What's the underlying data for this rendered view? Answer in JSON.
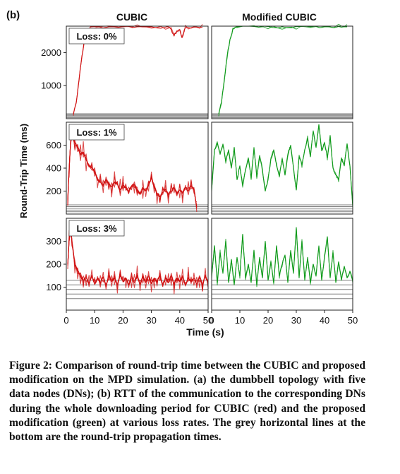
{
  "figure": {
    "panel_label": "(b)",
    "column_titles": [
      "CUBIC",
      "Modified CUBIC"
    ],
    "ylabel": "Round-Trip Time (ms)",
    "xlabel": "Time (s)"
  },
  "caption": "Figure 2: Comparison of round-trip time between the CUBIC and proposed modification on the MPD simulation. (a) the dumbbell topology with five data nodes (DNs); (b) RTT of the communication to the corresponding DNs during the whole downloading period for CUBIC (red) and the proposed modification (green) at various loss rates. The grey horizontal lines at the bottom are the round-trip propagation times.",
  "colors": {
    "cubic": "#d01010",
    "modified": "#0f9a1a",
    "propagation": "#7f7f7f"
  },
  "chart_data": [
    {
      "type": "line",
      "row": 0,
      "col": 0,
      "label": "Loss: 0%",
      "xlim": [
        0,
        50
      ],
      "ylim": [
        0,
        2800
      ],
      "yticks": [
        2000,
        1000
      ],
      "xticks": [],
      "show_yticks": true,
      "propagation_times": [
        30,
        60,
        90,
        120,
        150
      ],
      "series": [
        {
          "color_key": "cubic",
          "strands": 2,
          "points": [
            [
              2.5,
              150
            ],
            [
              3.5,
              500
            ],
            [
              4.5,
              1200
            ],
            [
              5.5,
              1900
            ],
            [
              6.5,
              2400
            ],
            [
              7.5,
              2700
            ],
            [
              9,
              2780
            ],
            [
              15,
              2780
            ],
            [
              20,
              2790
            ],
            [
              25,
              2780
            ],
            [
              30,
              2780
            ],
            [
              35,
              2770
            ],
            [
              37,
              2700
            ],
            [
              38,
              2500
            ],
            [
              39,
              2650
            ],
            [
              40,
              2700
            ],
            [
              40.8,
              2450
            ],
            [
              42,
              2750
            ],
            [
              45,
              2770
            ],
            [
              48,
              2770
            ]
          ]
        }
      ]
    },
    {
      "type": "line",
      "row": 0,
      "col": 1,
      "label": "",
      "xlim": [
        0,
        50
      ],
      "ylim": [
        0,
        2800
      ],
      "yticks": [],
      "xticks": [],
      "show_yticks": false,
      "propagation_times": [
        30,
        60,
        90,
        120,
        150
      ],
      "series": [
        {
          "color_key": "modified",
          "strands": 2,
          "points": [
            [
              2.5,
              150
            ],
            [
              3.5,
              500
            ],
            [
              4.5,
              1200
            ],
            [
              5.5,
              1900
            ],
            [
              6.5,
              2400
            ],
            [
              7.5,
              2700
            ],
            [
              9,
              2780
            ],
            [
              15,
              2790
            ],
            [
              20,
              2790
            ],
            [
              25,
              2780
            ],
            [
              30,
              2790
            ],
            [
              35,
              2780
            ],
            [
              40,
              2780
            ],
            [
              45,
              2790
            ],
            [
              48,
              2780
            ]
          ]
        }
      ]
    },
    {
      "type": "line",
      "row": 1,
      "col": 0,
      "label": "Loss: 1%",
      "xlim": [
        0,
        50
      ],
      "ylim": [
        0,
        800
      ],
      "yticks": [
        600,
        400,
        200
      ],
      "xticks": [],
      "show_yticks": true,
      "propagation_times": [
        20,
        35,
        50,
        65,
        80
      ],
      "series": [
        {
          "color_key": "cubic",
          "strands": 5,
          "points": [
            [
              0.5,
              120
            ],
            [
              1,
              400
            ],
            [
              1.5,
              620
            ],
            [
              2,
              690
            ],
            [
              3,
              620
            ],
            [
              4,
              580
            ],
            [
              5,
              520
            ],
            [
              6,
              540
            ],
            [
              7,
              470
            ],
            [
              8,
              420
            ],
            [
              9,
              400
            ],
            [
              10,
              370
            ],
            [
              11,
              300
            ],
            [
              12,
              280
            ],
            [
              13,
              250
            ],
            [
              14,
              300
            ],
            [
              15,
              260
            ],
            [
              16,
              240
            ],
            [
              17,
              280
            ],
            [
              18,
              260
            ],
            [
              19,
              210
            ],
            [
              20,
              250
            ],
            [
              21,
              230
            ],
            [
              22,
              200
            ],
            [
              23,
              240
            ],
            [
              24,
              260
            ],
            [
              25,
              210
            ],
            [
              26,
              170
            ],
            [
              27,
              230
            ],
            [
              28,
              200
            ],
            [
              29,
              250
            ],
            [
              30,
              320
            ],
            [
              31,
              240
            ],
            [
              32,
              180
            ],
            [
              33,
              150
            ],
            [
              34,
              190
            ],
            [
              35,
              220
            ],
            [
              36,
              170
            ],
            [
              37,
              200
            ],
            [
              38,
              230
            ],
            [
              39,
              180
            ],
            [
              40,
              210
            ],
            [
              41,
              190
            ],
            [
              42,
              230
            ],
            [
              43,
              200
            ],
            [
              44,
              240
            ],
            [
              45,
              220
            ],
            [
              46,
              60
            ]
          ]
        }
      ]
    },
    {
      "type": "line",
      "row": 1,
      "col": 1,
      "label": "",
      "xlim": [
        0,
        50
      ],
      "ylim": [
        0,
        800
      ],
      "yticks": [],
      "xticks": [],
      "show_yticks": false,
      "propagation_times": [
        20,
        35,
        50,
        65,
        80
      ],
      "series": [
        {
          "color_key": "modified",
          "strands": 2,
          "points": [
            [
              0,
              200
            ],
            [
              1,
              560
            ],
            [
              2,
              620
            ],
            [
              3,
              520
            ],
            [
              4,
              610
            ],
            [
              5,
              460
            ],
            [
              6,
              560
            ],
            [
              7,
              400
            ],
            [
              8,
              580
            ],
            [
              9,
              300
            ],
            [
              10,
              420
            ],
            [
              11,
              250
            ],
            [
              12,
              380
            ],
            [
              13,
              490
            ],
            [
              14,
              310
            ],
            [
              15,
              580
            ],
            [
              16,
              320
            ],
            [
              17,
              510
            ],
            [
              18,
              390
            ],
            [
              19,
              200
            ],
            [
              20,
              300
            ],
            [
              21,
              480
            ],
            [
              22,
              560
            ],
            [
              23,
              420
            ],
            [
              24,
              330
            ],
            [
              25,
              480
            ],
            [
              26,
              340
            ],
            [
              27,
              520
            ],
            [
              28,
              600
            ],
            [
              29,
              400
            ],
            [
              30,
              210
            ],
            [
              31,
              500
            ],
            [
              32,
              430
            ],
            [
              33,
              560
            ],
            [
              34,
              660
            ],
            [
              35,
              500
            ],
            [
              36,
              720
            ],
            [
              37,
              580
            ],
            [
              38,
              780
            ],
            [
              39,
              550
            ],
            [
              40,
              620
            ],
            [
              41,
              490
            ],
            [
              42,
              680
            ],
            [
              43,
              400
            ],
            [
              44,
              340
            ],
            [
              45,
              300
            ],
            [
              46,
              490
            ],
            [
              47,
              420
            ],
            [
              48,
              610
            ],
            [
              49,
              420
            ],
            [
              50,
              60
            ]
          ]
        }
      ]
    },
    {
      "type": "line",
      "row": 2,
      "col": 0,
      "label": "Loss: 3%",
      "xlim": [
        0,
        50
      ],
      "ylim": [
        0,
        400
      ],
      "yticks": [
        300,
        200,
        100
      ],
      "xticks": [
        0,
        10,
        20,
        30,
        40,
        50
      ],
      "show_yticks": true,
      "propagation_times": [
        50,
        70,
        90,
        110,
        130
      ],
      "series": [
        {
          "color_key": "cubic",
          "strands": 5,
          "points": [
            [
              0.5,
              200
            ],
            [
              1,
              300
            ],
            [
              1.5,
              360
            ],
            [
              2,
              300
            ],
            [
              3,
              200
            ],
            [
              4,
              170
            ],
            [
              5,
              150
            ],
            [
              6,
              130
            ],
            [
              7,
              140
            ],
            [
              8,
              120
            ],
            [
              9,
              150
            ],
            [
              10,
              115
            ],
            [
              11,
              140
            ],
            [
              12,
              120
            ],
            [
              13,
              145
            ],
            [
              14,
              110
            ],
            [
              15,
              150
            ],
            [
              16,
              125
            ],
            [
              17,
              140
            ],
            [
              18,
              110
            ],
            [
              19,
              150
            ],
            [
              20,
              125
            ],
            [
              21,
              140
            ],
            [
              22,
              110
            ],
            [
              23,
              145
            ],
            [
              24,
              120
            ],
            [
              25,
              150
            ],
            [
              26,
              115
            ],
            [
              27,
              145
            ],
            [
              28,
              120
            ],
            [
              29,
              150
            ],
            [
              30,
              115
            ],
            [
              31,
              140
            ],
            [
              32,
              125
            ],
            [
              33,
              150
            ],
            [
              34,
              110
            ],
            [
              35,
              140
            ],
            [
              36,
              120
            ],
            [
              37,
              150
            ],
            [
              38,
              115
            ],
            [
              39,
              140
            ],
            [
              40,
              125
            ],
            [
              41,
              145
            ],
            [
              42,
              110
            ],
            [
              43,
              140
            ],
            [
              44,
              125
            ],
            [
              45,
              140
            ],
            [
              46,
              115
            ],
            [
              47,
              145
            ],
            [
              48,
              110
            ],
            [
              49,
              150
            ],
            [
              50,
              120
            ]
          ]
        }
      ]
    },
    {
      "type": "line",
      "row": 2,
      "col": 1,
      "label": "",
      "xlim": [
        0,
        50
      ],
      "ylim": [
        0,
        400
      ],
      "yticks": [],
      "xticks": [
        0,
        10,
        20,
        30,
        40,
        50
      ],
      "show_yticks": false,
      "propagation_times": [
        50,
        70,
        90,
        110,
        130
      ],
      "series": [
        {
          "color_key": "modified",
          "strands": 2,
          "points": [
            [
              0,
              150
            ],
            [
              1,
              280
            ],
            [
              2,
              120
            ],
            [
              3,
              250
            ],
            [
              4,
              160
            ],
            [
              5,
              300
            ],
            [
              6,
              120
            ],
            [
              7,
              220
            ],
            [
              8,
              110
            ],
            [
              9,
              230
            ],
            [
              10,
              150
            ],
            [
              11,
              330
            ],
            [
              12,
              140
            ],
            [
              13,
              200
            ],
            [
              14,
              120
            ],
            [
              15,
              260
            ],
            [
              16,
              110
            ],
            [
              17,
              230
            ],
            [
              18,
              140
            ],
            [
              19,
              300
            ],
            [
              20,
              130
            ],
            [
              21,
              210
            ],
            [
              22,
              120
            ],
            [
              23,
              280
            ],
            [
              24,
              150
            ],
            [
              25,
              200
            ],
            [
              26,
              240
            ],
            [
              27,
              120
            ],
            [
              28,
              260
            ],
            [
              29,
              160
            ],
            [
              30,
              360
            ],
            [
              31,
              140
            ],
            [
              32,
              300
            ],
            [
              33,
              130
            ],
            [
              34,
              230
            ],
            [
              35,
              120
            ],
            [
              36,
              200
            ],
            [
              37,
              150
            ],
            [
              38,
              280
            ],
            [
              39,
              130
            ],
            [
              40,
              230
            ],
            [
              41,
              320
            ],
            [
              42,
              140
            ],
            [
              43,
              250
            ],
            [
              44,
              120
            ],
            [
              45,
              210
            ],
            [
              46,
              130
            ],
            [
              47,
              190
            ],
            [
              48,
              140
            ],
            [
              49,
              170
            ],
            [
              50,
              130
            ]
          ]
        }
      ]
    }
  ]
}
